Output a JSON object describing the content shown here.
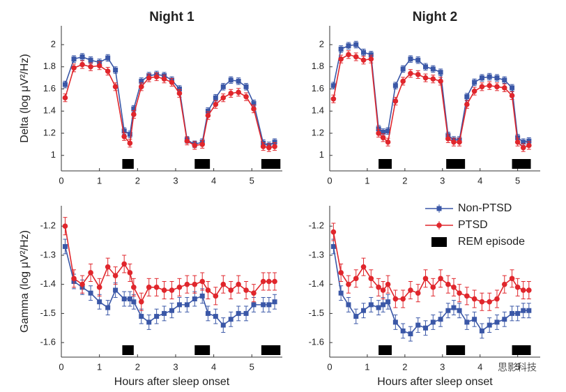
{
  "chart_data": [
    {
      "type": "line",
      "title": "Night 1",
      "ylabel": "Delta (log μV²/Hz)",
      "x": [
        0.1,
        0.33,
        0.55,
        0.77,
        1.0,
        1.22,
        1.42,
        1.65,
        1.8,
        1.9,
        2.1,
        2.3,
        2.5,
        2.7,
        2.9,
        3.1,
        3.3,
        3.5,
        3.7,
        3.85,
        4.05,
        4.25,
        4.45,
        4.65,
        4.85,
        5.05,
        5.3,
        5.45,
        5.6
      ],
      "series": [
        {
          "name": "Non-PTSD",
          "color": "#3a57a7",
          "error": 0.03,
          "values": [
            1.64,
            1.87,
            1.89,
            1.86,
            1.84,
            1.88,
            1.77,
            1.22,
            1.19,
            1.42,
            1.67,
            1.72,
            1.73,
            1.72,
            1.68,
            1.6,
            1.14,
            1.1,
            1.12,
            1.4,
            1.52,
            1.62,
            1.68,
            1.67,
            1.62,
            1.47,
            1.11,
            1.09,
            1.12
          ]
        },
        {
          "name": "PTSD",
          "color": "#e0262c",
          "error": 0.035,
          "values": [
            1.52,
            1.79,
            1.82,
            1.8,
            1.81,
            1.76,
            1.62,
            1.17,
            1.11,
            1.37,
            1.62,
            1.7,
            1.71,
            1.69,
            1.66,
            1.56,
            1.13,
            1.09,
            1.1,
            1.36,
            1.46,
            1.52,
            1.56,
            1.57,
            1.53,
            1.42,
            1.08,
            1.07,
            1.08
          ]
        }
      ],
      "rem_episodes": [
        [
          1.6,
          1.9
        ],
        [
          3.5,
          3.9
        ],
        [
          5.25,
          5.75
        ]
      ],
      "rem_color": "#000000",
      "xlim": [
        0,
        5.8
      ],
      "ylim": [
        0.86,
        2.17
      ],
      "xticks": [
        0,
        1,
        2,
        3,
        4,
        5
      ],
      "yticks": [
        1,
        1.2,
        1.4,
        1.6,
        1.8,
        2
      ]
    },
    {
      "type": "line",
      "title": "Night 2",
      "x": [
        0.1,
        0.3,
        0.5,
        0.7,
        0.9,
        1.1,
        1.3,
        1.42,
        1.55,
        1.75,
        1.95,
        2.15,
        2.35,
        2.55,
        2.75,
        2.95,
        3.15,
        3.3,
        3.45,
        3.65,
        3.85,
        4.05,
        4.25,
        4.45,
        4.65,
        4.85,
        5.0,
        5.15,
        5.3
      ],
      "series": [
        {
          "name": "Non-PTSD",
          "color": "#3a57a7",
          "error": 0.03,
          "values": [
            1.63,
            1.96,
            1.99,
            2.0,
            1.93,
            1.91,
            1.24,
            1.21,
            1.22,
            1.63,
            1.78,
            1.87,
            1.86,
            1.8,
            1.78,
            1.75,
            1.18,
            1.14,
            1.14,
            1.53,
            1.66,
            1.7,
            1.71,
            1.7,
            1.68,
            1.61,
            1.16,
            1.12,
            1.13
          ]
        },
        {
          "name": "PTSD",
          "color": "#e0262c",
          "error": 0.035,
          "values": [
            1.51,
            1.87,
            1.91,
            1.89,
            1.86,
            1.87,
            1.2,
            1.16,
            1.12,
            1.49,
            1.67,
            1.74,
            1.73,
            1.7,
            1.69,
            1.67,
            1.15,
            1.12,
            1.12,
            1.46,
            1.58,
            1.62,
            1.63,
            1.62,
            1.61,
            1.54,
            1.12,
            1.07,
            1.09
          ]
        }
      ],
      "rem_episodes": [
        [
          1.3,
          1.65
        ],
        [
          3.1,
          3.6
        ],
        [
          4.85,
          5.35
        ]
      ],
      "rem_color": "#000000",
      "xlim": [
        0,
        5.6
      ],
      "ylim": [
        0.86,
        2.17
      ],
      "xticks": [
        0,
        1,
        2,
        3,
        4,
        5
      ],
      "yticks": [
        1,
        1.2,
        1.4,
        1.6,
        1.8,
        2
      ]
    },
    {
      "type": "line",
      "ylabel": "Gamma (log μV²/Hz)",
      "xlabel": "Hours after sleep onset",
      "x": [
        0.1,
        0.33,
        0.55,
        0.77,
        1.0,
        1.22,
        1.42,
        1.65,
        1.8,
        1.9,
        2.1,
        2.3,
        2.5,
        2.7,
        2.9,
        3.1,
        3.3,
        3.5,
        3.7,
        3.85,
        4.05,
        4.25,
        4.45,
        4.65,
        4.85,
        5.05,
        5.3,
        5.45,
        5.6
      ],
      "series": [
        {
          "name": "Non-PTSD",
          "color": "#3a57a7",
          "error": 0.025,
          "values": [
            -1.27,
            -1.39,
            -1.41,
            -1.43,
            -1.46,
            -1.48,
            -1.42,
            -1.45,
            -1.45,
            -1.46,
            -1.51,
            -1.53,
            -1.51,
            -1.5,
            -1.49,
            -1.47,
            -1.47,
            -1.45,
            -1.44,
            -1.5,
            -1.51,
            -1.54,
            -1.52,
            -1.5,
            -1.5,
            -1.47,
            -1.47,
            -1.47,
            -1.46
          ]
        },
        {
          "name": "PTSD",
          "color": "#e0262c",
          "error": 0.03,
          "values": [
            -1.2,
            -1.38,
            -1.4,
            -1.36,
            -1.41,
            -1.34,
            -1.37,
            -1.33,
            -1.36,
            -1.41,
            -1.46,
            -1.41,
            -1.41,
            -1.42,
            -1.42,
            -1.41,
            -1.4,
            -1.4,
            -1.39,
            -1.42,
            -1.44,
            -1.4,
            -1.42,
            -1.4,
            -1.42,
            -1.43,
            -1.39,
            -1.39,
            -1.39
          ]
        }
      ],
      "rem_episodes": [
        [
          1.6,
          1.9
        ],
        [
          3.5,
          3.9
        ],
        [
          5.25,
          5.75
        ]
      ],
      "rem_color": "#000000",
      "xlim": [
        0,
        5.8
      ],
      "ylim": [
        -1.65,
        -1.13
      ],
      "xticks": [
        0,
        1,
        2,
        3,
        4,
        5
      ],
      "yticks": [
        -1.6,
        -1.5,
        -1.4,
        -1.3,
        -1.2
      ]
    },
    {
      "type": "line",
      "xlabel": "Hours after sleep onset",
      "legend": "upper right",
      "rem_label": "REM episode",
      "x": [
        0.1,
        0.3,
        0.5,
        0.7,
        0.9,
        1.1,
        1.3,
        1.42,
        1.55,
        1.75,
        1.95,
        2.15,
        2.35,
        2.55,
        2.75,
        2.95,
        3.15,
        3.3,
        3.45,
        3.65,
        3.85,
        4.05,
        4.25,
        4.45,
        4.65,
        4.85,
        5.0,
        5.15,
        5.3
      ],
      "series": [
        {
          "name": "Non-PTSD",
          "color": "#3a57a7",
          "error": 0.025,
          "values": [
            -1.27,
            -1.43,
            -1.47,
            -1.51,
            -1.49,
            -1.47,
            -1.48,
            -1.47,
            -1.46,
            -1.53,
            -1.56,
            -1.57,
            -1.54,
            -1.55,
            -1.53,
            -1.52,
            -1.49,
            -1.48,
            -1.49,
            -1.53,
            -1.52,
            -1.56,
            -1.54,
            -1.53,
            -1.52,
            -1.5,
            -1.5,
            -1.49,
            -1.49
          ]
        },
        {
          "name": "PTSD",
          "color": "#e0262c",
          "error": 0.03,
          "values": [
            -1.22,
            -1.36,
            -1.4,
            -1.38,
            -1.34,
            -1.38,
            -1.41,
            -1.42,
            -1.4,
            -1.45,
            -1.45,
            -1.42,
            -1.43,
            -1.38,
            -1.41,
            -1.38,
            -1.4,
            -1.41,
            -1.43,
            -1.44,
            -1.45,
            -1.46,
            -1.46,
            -1.45,
            -1.4,
            -1.38,
            -1.41,
            -1.42,
            -1.42
          ]
        }
      ],
      "rem_episodes": [
        [
          1.3,
          1.65
        ],
        [
          3.1,
          3.6
        ],
        [
          4.85,
          5.35
        ]
      ],
      "rem_color": "#000000",
      "xlim": [
        0,
        5.6
      ],
      "ylim": [
        -1.65,
        -1.13
      ],
      "xticks": [
        0,
        1,
        2,
        3,
        4,
        5
      ],
      "yticks": [
        -1.6,
        -1.5,
        -1.4,
        -1.3,
        -1.2
      ]
    }
  ],
  "watermark": "思影科技"
}
